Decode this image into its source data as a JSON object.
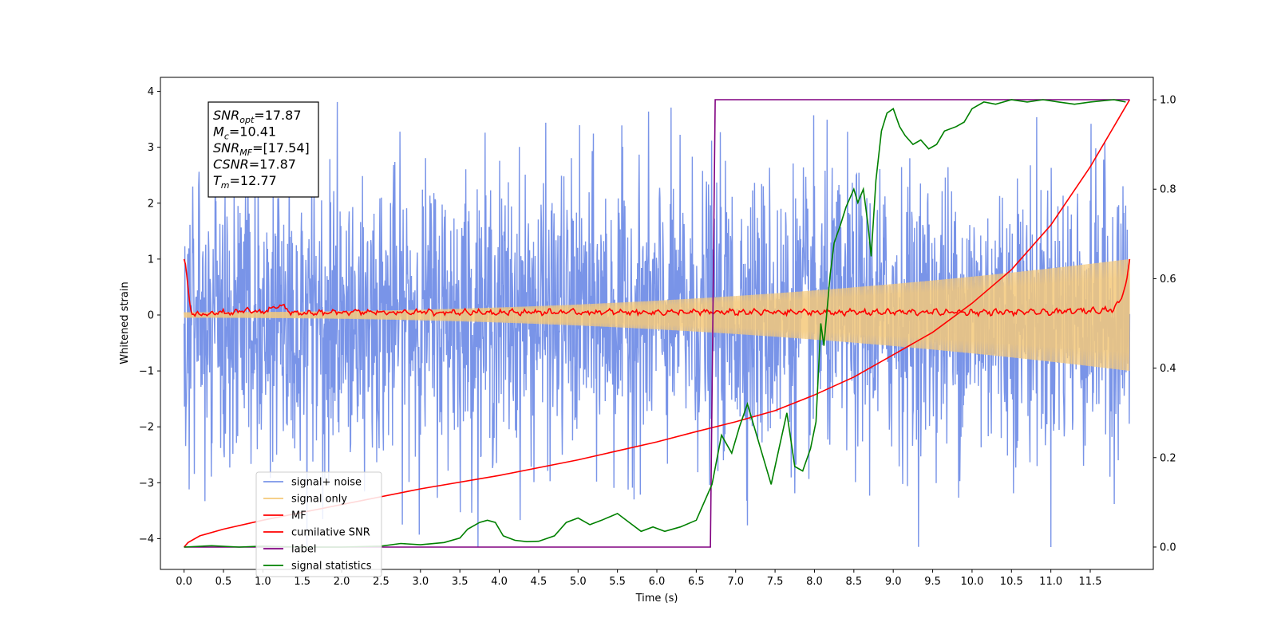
{
  "chart_data": {
    "type": "line",
    "xlabel": "Time (s)",
    "ylabel": "Whitened strain",
    "xlim": [
      -0.3,
      12.3
    ],
    "ylim": [
      -4.55,
      4.25
    ],
    "y2lim": [
      -0.05,
      1.05
    ],
    "x_ticks": [
      0.0,
      0.5,
      1.0,
      1.5,
      2.0,
      2.5,
      3.0,
      3.5,
      4.0,
      4.5,
      5.0,
      5.5,
      6.0,
      6.5,
      7.0,
      7.5,
      8.0,
      8.5,
      9.0,
      9.5,
      10.0,
      10.5,
      11.0,
      11.5
    ],
    "x_tick_labels": [
      "0.0",
      "0.5",
      "1.0",
      "1.5",
      "2.0",
      "2.5",
      "3.0",
      "3.5",
      "4.0",
      "4.5",
      "5.0",
      "5.5",
      "6.0",
      "6.5",
      "7.0",
      "7.5",
      "8.0",
      "8.5",
      "9.0",
      "9.5",
      "10.0",
      "10.5",
      "11.0",
      "11.5"
    ],
    "y_ticks": [
      -4,
      -3,
      -2,
      -1,
      0,
      1,
      2,
      3,
      4
    ],
    "y_tick_labels": [
      "−4",
      "−3",
      "−2",
      "−1",
      "0",
      "1",
      "2",
      "3",
      "4"
    ],
    "y2_ticks": [
      0.0,
      0.2,
      0.4,
      0.6,
      0.8,
      1.0
    ],
    "y2_tick_labels": [
      "0.0",
      "0.2",
      "0.4",
      "0.6",
      "0.8",
      "1.0"
    ],
    "legend_position": "lower-left",
    "annotation": {
      "lines": [
        {
          "sym": "SNR",
          "sub": "opt",
          "rest": "=17.87"
        },
        {
          "sym": "M",
          "sub": "c",
          "rest": "=10.41"
        },
        {
          "sym": "SNR",
          "sub": "MF",
          "rest": "=[17.54]"
        },
        {
          "sym": "CSNR",
          "sub": "",
          "rest": "=17.87"
        },
        {
          "sym": "T",
          "sub": "m",
          "rest": "=12.77"
        }
      ]
    },
    "series": [
      {
        "name": "signal+ noise",
        "color": "#7994e8",
        "axis": "left",
        "kind": "noise",
        "x_range": [
          0.0,
          12.0
        ],
        "y_range": [
          -4.15,
          3.85
        ]
      },
      {
        "name": "signal only",
        "color": "#f5c97a",
        "axis": "left",
        "kind": "chirp",
        "x_range": [
          0.0,
          12.0
        ],
        "amplitude_start": 0.05,
        "amplitude_end": 1.0
      },
      {
        "name": "MF",
        "color": "#ff0000",
        "axis": "left",
        "x": [
          0.0,
          0.02,
          0.05,
          0.08,
          0.12,
          0.2,
          0.4,
          0.6,
          0.8,
          1.0,
          1.1,
          1.2,
          1.35,
          1.5,
          2.0,
          3.0,
          4.0,
          5.0,
          6.0,
          7.0,
          8.0,
          9.0,
          10.0,
          11.0,
          11.8,
          11.9,
          11.96,
          12.0
        ],
        "y": [
          1.0,
          0.9,
          0.5,
          0.1,
          0.02,
          0.0,
          0.05,
          0.03,
          0.08,
          0.05,
          0.12,
          0.18,
          0.06,
          0.02,
          0.05,
          0.05,
          0.05,
          0.05,
          0.05,
          0.05,
          0.05,
          0.05,
          0.05,
          0.05,
          0.1,
          0.3,
          0.6,
          1.0
        ],
        "ripple": 0.05
      },
      {
        "name": "cumilative SNR",
        "color": "#ff0000",
        "axis": "right",
        "x": [
          0.0,
          0.05,
          0.2,
          0.5,
          1.0,
          2.0,
          3.0,
          4.0,
          5.0,
          6.0,
          6.5,
          7.0,
          7.5,
          8.0,
          8.5,
          9.0,
          9.5,
          10.0,
          10.5,
          11.0,
          11.5,
          12.0
        ],
        "y": [
          0.0,
          0.01,
          0.025,
          0.04,
          0.06,
          0.095,
          0.13,
          0.16,
          0.195,
          0.235,
          0.258,
          0.28,
          0.305,
          0.34,
          0.38,
          0.43,
          0.48,
          0.545,
          0.62,
          0.72,
          0.85,
          1.0
        ]
      },
      {
        "name": "label",
        "color": "#800080",
        "axis": "right",
        "x": [
          0.0,
          6.68,
          6.74,
          12.0
        ],
        "y": [
          0.0,
          0.0,
          1.0,
          1.0
        ]
      },
      {
        "name": "signal statistics",
        "color": "#008000",
        "axis": "right",
        "x": [
          0.0,
          0.35,
          0.7,
          1.0,
          1.5,
          2.0,
          2.5,
          2.75,
          3.0,
          3.3,
          3.5,
          3.6,
          3.75,
          3.85,
          3.95,
          4.05,
          4.2,
          4.35,
          4.5,
          4.7,
          4.85,
          5.0,
          5.15,
          5.3,
          5.5,
          5.65,
          5.8,
          5.95,
          6.1,
          6.3,
          6.5,
          6.6,
          6.7,
          6.82,
          6.95,
          7.05,
          7.15,
          7.25,
          7.35,
          7.45,
          7.55,
          7.65,
          7.75,
          7.85,
          7.95,
          8.02,
          8.08,
          8.12,
          8.2,
          8.25,
          8.33,
          8.4,
          8.5,
          8.55,
          8.62,
          8.68,
          8.72,
          8.78,
          8.85,
          8.92,
          9.0,
          9.08,
          9.15,
          9.25,
          9.35,
          9.45,
          9.55,
          9.65,
          9.8,
          9.9,
          10.0,
          10.15,
          10.3,
          10.5,
          10.7,
          10.9,
          11.1,
          11.3,
          11.5,
          11.8,
          11.95
        ],
        "y": [
          0.0,
          0.003,
          0.0,
          0.002,
          0.0,
          0.0,
          0.002,
          0.008,
          0.005,
          0.01,
          0.02,
          0.04,
          0.055,
          0.06,
          0.055,
          0.025,
          0.015,
          0.012,
          0.013,
          0.025,
          0.055,
          0.065,
          0.05,
          0.06,
          0.075,
          0.055,
          0.035,
          0.045,
          0.035,
          0.045,
          0.06,
          0.1,
          0.14,
          0.25,
          0.21,
          0.27,
          0.32,
          0.26,
          0.2,
          0.14,
          0.22,
          0.3,
          0.18,
          0.17,
          0.22,
          0.28,
          0.5,
          0.45,
          0.61,
          0.68,
          0.72,
          0.76,
          0.8,
          0.77,
          0.8,
          0.72,
          0.65,
          0.82,
          0.93,
          0.97,
          0.98,
          0.94,
          0.92,
          0.9,
          0.91,
          0.89,
          0.9,
          0.93,
          0.94,
          0.95,
          0.98,
          0.995,
          0.99,
          1.0,
          0.995,
          1.0,
          0.995,
          0.99,
          0.995,
          1.0,
          0.995
        ]
      }
    ]
  }
}
